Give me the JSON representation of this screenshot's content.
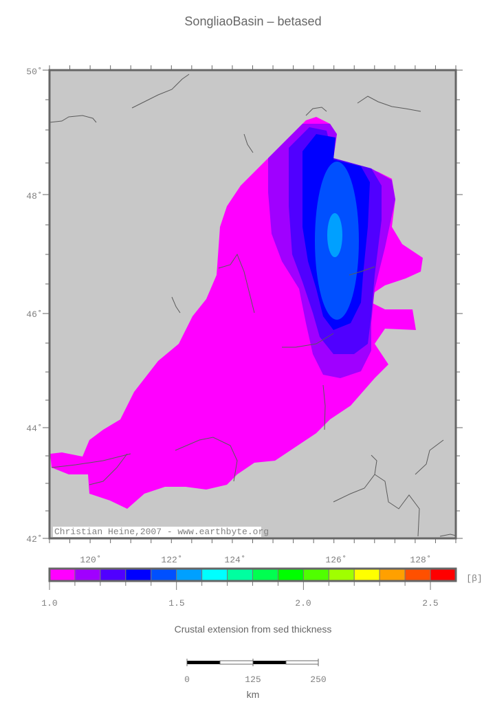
{
  "title": "SongliaoBasin – betased",
  "map": {
    "lat_labels": [
      "50˚",
      "48˚",
      "46˚",
      "44˚",
      "42˚"
    ],
    "lon_labels": [
      "120˚",
      "122˚",
      "124˚",
      "126˚",
      "128˚"
    ],
    "credit": "Christian Heine,2007 - www.earthbyte.org",
    "land_color": "#c8c8c8",
    "coastline_color": "#5a5a5a"
  },
  "colorbar": {
    "unit": "[β]",
    "range": [
      1.0,
      2.6
    ],
    "colors": [
      "#ff00ff",
      "#a000ff",
      "#5000ff",
      "#0000ff",
      "#0050ff",
      "#00a0ff",
      "#00ffff",
      "#00ffa0",
      "#00ff50",
      "#00ff00",
      "#50ff00",
      "#a0ff00",
      "#ffff00",
      "#ffa000",
      "#ff5000",
      "#ff0000"
    ],
    "tick_labels": [
      "1.0",
      "1.5",
      "2.0",
      "2.5"
    ],
    "caption": "Crustal extension from sed thickness"
  },
  "scalebar": {
    "labels": [
      "0",
      "125",
      "250"
    ],
    "unit": "km"
  }
}
